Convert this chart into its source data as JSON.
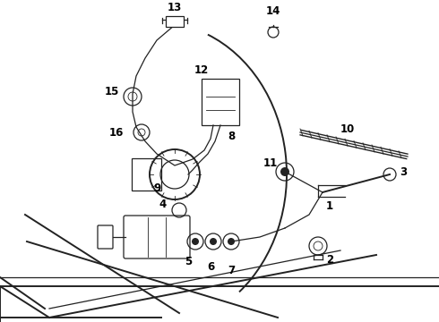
{
  "background_color": "#ffffff",
  "line_color": "#222222",
  "label_color": "#000000",
  "fig_width": 4.9,
  "fig_height": 3.6,
  "dpi": 100
}
